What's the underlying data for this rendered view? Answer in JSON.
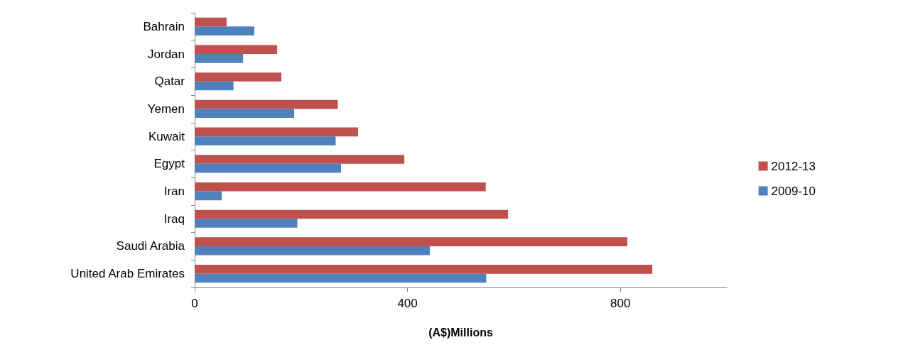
{
  "chart_data": {
    "type": "bar",
    "orientation": "horizontal",
    "xlabel": "(A$)Millions",
    "categories": [
      "Bahrain",
      "Jordan",
      "Qatar",
      "Yemen",
      "Kuwait",
      "Egypt",
      "Iran",
      "Iraq",
      "Saudi Arabia",
      "United Arab Emirates"
    ],
    "series": [
      {
        "name": "2012-13",
        "color": "#c0504d",
        "values": [
          60,
          155,
          163,
          269,
          307,
          394,
          547,
          589,
          813,
          860
        ]
      },
      {
        "name": "2009-10",
        "color": "#4f81bd",
        "values": [
          112,
          91,
          73,
          187,
          265,
          275,
          51,
          193,
          442,
          548
        ]
      }
    ],
    "xlim": [
      0,
      1000
    ],
    "xticks": [
      0,
      400,
      800
    ],
    "grid": false,
    "legend": "right"
  }
}
